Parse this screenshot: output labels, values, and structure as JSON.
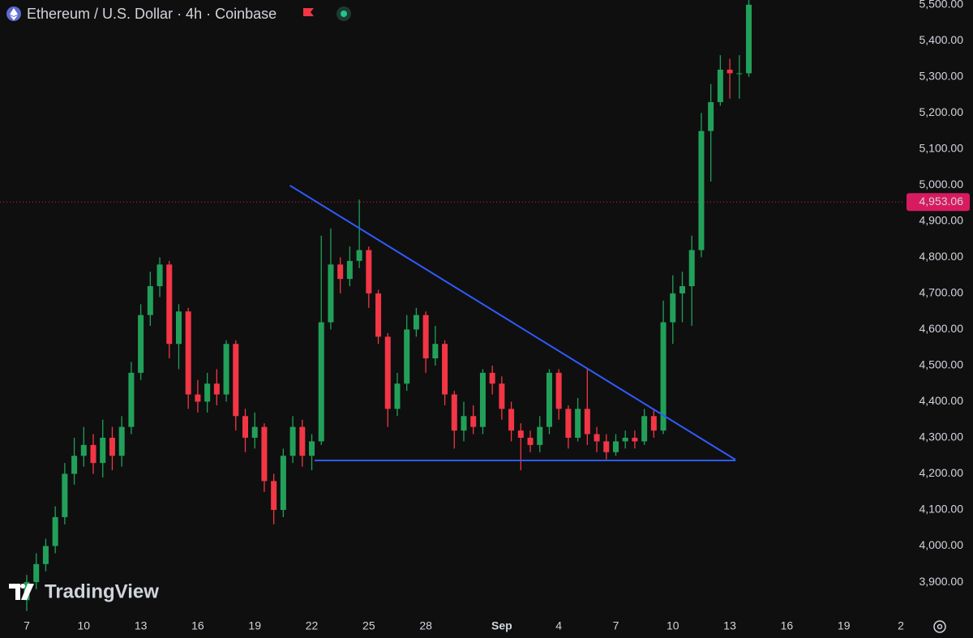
{
  "chart_data": {
    "type": "candlestick",
    "title": "Ethereum / U.S. Dollar · 4h · Coinbase",
    "watermark": "TradingView",
    "categories": [
      "7",
      null,
      null,
      null,
      null,
      null,
      "10",
      null,
      null,
      null,
      null,
      null,
      "13",
      null,
      null,
      null,
      null,
      null,
      "16",
      null,
      null,
      null,
      null,
      null,
      "19",
      null,
      null,
      null,
      null,
      null,
      "22",
      null,
      null,
      null,
      null,
      null,
      "25",
      null,
      null,
      null,
      null,
      null,
      "28",
      null,
      null,
      null,
      null,
      null,
      null,
      null,
      "Sep",
      null,
      null,
      null,
      null,
      null,
      "4",
      null,
      null,
      null,
      null,
      null,
      "7",
      null,
      null,
      null,
      null,
      null,
      "10",
      null,
      null,
      null,
      null,
      null,
      "13",
      null,
      null,
      null,
      null,
      null,
      "16",
      null,
      null,
      null,
      null,
      null,
      "19",
      null,
      null,
      null,
      null,
      null,
      "2"
    ],
    "open": [
      3850,
      3900,
      3950,
      4000,
      4080,
      4200,
      4250,
      4280,
      4230,
      4300,
      4250,
      4330,
      4480,
      4640,
      4720,
      4780,
      4560,
      4650,
      4420,
      4400,
      4450,
      4420,
      4560,
      4360,
      4300,
      4330,
      4180,
      4100,
      4250,
      4330,
      4250,
      4290,
      4620,
      4780,
      4740,
      4790,
      4820,
      4700,
      4580,
      4380,
      4450,
      4600,
      4640,
      4520,
      4560,
      4420,
      4320,
      4360,
      4330,
      4480,
      4450,
      4380,
      4320,
      4300,
      4280,
      4330,
      4480,
      4380,
      4300,
      4380,
      4310,
      4290,
      4260,
      4290,
      4300,
      4290,
      4360,
      4320,
      4620,
      4700,
      4720,
      4820,
      5150,
      5230,
      5320,
      5310,
      5310,
      null,
      null,
      null,
      null,
      null,
      null,
      null,
      null,
      null,
      null,
      null,
      null,
      null,
      null,
      null,
      null
    ],
    "high": [
      3920,
      3980,
      4020,
      4110,
      4230,
      4300,
      4330,
      4310,
      4350,
      4330,
      4360,
      4510,
      4670,
      4760,
      4800,
      4790,
      4670,
      4660,
      4460,
      4480,
      4490,
      4570,
      4570,
      4380,
      4370,
      4340,
      4200,
      4270,
      4360,
      4350,
      4310,
      4860,
      4880,
      4800,
      4830,
      4960,
      4830,
      4710,
      4590,
      4480,
      4640,
      4660,
      4650,
      4610,
      4570,
      4430,
      4400,
      4390,
      4490,
      4500,
      4470,
      4400,
      4340,
      4320,
      4360,
      4490,
      4490,
      4390,
      4410,
      4490,
      4330,
      4310,
      4310,
      4320,
      4320,
      4380,
      4380,
      4680,
      4750,
      4760,
      4860,
      5200,
      5280,
      5360,
      5350,
      5360,
      5520,
      null,
      null,
      null,
      null,
      null,
      null,
      null,
      null,
      null,
      null,
      null,
      null,
      null,
      null,
      null,
      null
    ],
    "low": [
      3820,
      3880,
      3930,
      3980,
      4060,
      4170,
      4220,
      4200,
      4190,
      4210,
      4220,
      4310,
      4460,
      4610,
      4690,
      4520,
      4490,
      4380,
      4370,
      4370,
      4390,
      4400,
      4320,
      4260,
      4270,
      4150,
      4060,
      4080,
      4230,
      4220,
      4210,
      4280,
      4600,
      4700,
      4720,
      4770,
      4660,
      4560,
      4330,
      4360,
      4430,
      4580,
      4480,
      4500,
      4390,
      4270,
      4290,
      4310,
      4310,
      4420,
      4350,
      4290,
      4210,
      4260,
      4260,
      4310,
      4350,
      4270,
      4290,
      4280,
      4260,
      4240,
      4250,
      4270,
      4270,
      4280,
      4300,
      4310,
      4560,
      4620,
      4610,
      4800,
      5010,
      5220,
      5240,
      5240,
      5300,
      null,
      null,
      null,
      null,
      null,
      null,
      null,
      null,
      null,
      null,
      null,
      null,
      null,
      null,
      null,
      null
    ],
    "close": [
      3900,
      3950,
      4000,
      4080,
      4200,
      4250,
      4280,
      4230,
      4300,
      4250,
      4330,
      4480,
      4640,
      4720,
      4780,
      4560,
      4650,
      4420,
      4400,
      4450,
      4420,
      4560,
      4360,
      4300,
      4330,
      4180,
      4100,
      4250,
      4330,
      4250,
      4290,
      4620,
      4780,
      4740,
      4790,
      4820,
      4700,
      4580,
      4380,
      4450,
      4600,
      4640,
      4520,
      4560,
      4420,
      4320,
      4360,
      4330,
      4480,
      4450,
      4380,
      4320,
      4300,
      4280,
      4330,
      4480,
      4380,
      4300,
      4380,
      4310,
      4290,
      4260,
      4290,
      4300,
      4290,
      4360,
      4320,
      4620,
      4700,
      4720,
      4820,
      5150,
      5230,
      5320,
      5310,
      5310,
      5500,
      null,
      null,
      null,
      null,
      null,
      null,
      null,
      null,
      null,
      null,
      null,
      null,
      null,
      null,
      null,
      null
    ],
    "up_color": "#22a05a",
    "down_color": "#f23645",
    "ylim": [
      3817,
      5513
    ],
    "yticks": [
      {
        "value": 3900,
        "label": "3,900.00"
      },
      {
        "value": 4000,
        "label": "4,000.00"
      },
      {
        "value": 4100,
        "label": "4,100.00"
      },
      {
        "value": 4200,
        "label": "4,200.00"
      },
      {
        "value": 4300,
        "label": "4,300.00"
      },
      {
        "value": 4400,
        "label": "4,400.00"
      },
      {
        "value": 4500,
        "label": "4,500.00"
      },
      {
        "value": 4600,
        "label": "4,600.00"
      },
      {
        "value": 4700,
        "label": "4,700.00"
      },
      {
        "value": 4800,
        "label": "4,800.00"
      },
      {
        "value": 4900,
        "label": "4,900.00"
      },
      {
        "value": 5000,
        "label": "5,000.00"
      },
      {
        "value": 5100,
        "label": "5,100.00"
      },
      {
        "value": 5200,
        "label": "5,200.00"
      },
      {
        "value": 5300,
        "label": "5,300.00"
      },
      {
        "value": 5400,
        "label": "5,400.00"
      },
      {
        "value": 5500,
        "label": "5,500.00"
      }
    ],
    "current_price": {
      "value": 4953.06,
      "label": "4,953.06",
      "color": "#d81b60"
    },
    "trendlines": [
      {
        "color": "#2f5bff",
        "x": [
          27.7,
          74.6
        ],
        "y": [
          4999,
          4239
        ]
      },
      {
        "color": "#2f5bff",
        "x": [
          30.3,
          74.6
        ],
        "y": [
          4237,
          4237
        ]
      }
    ]
  }
}
